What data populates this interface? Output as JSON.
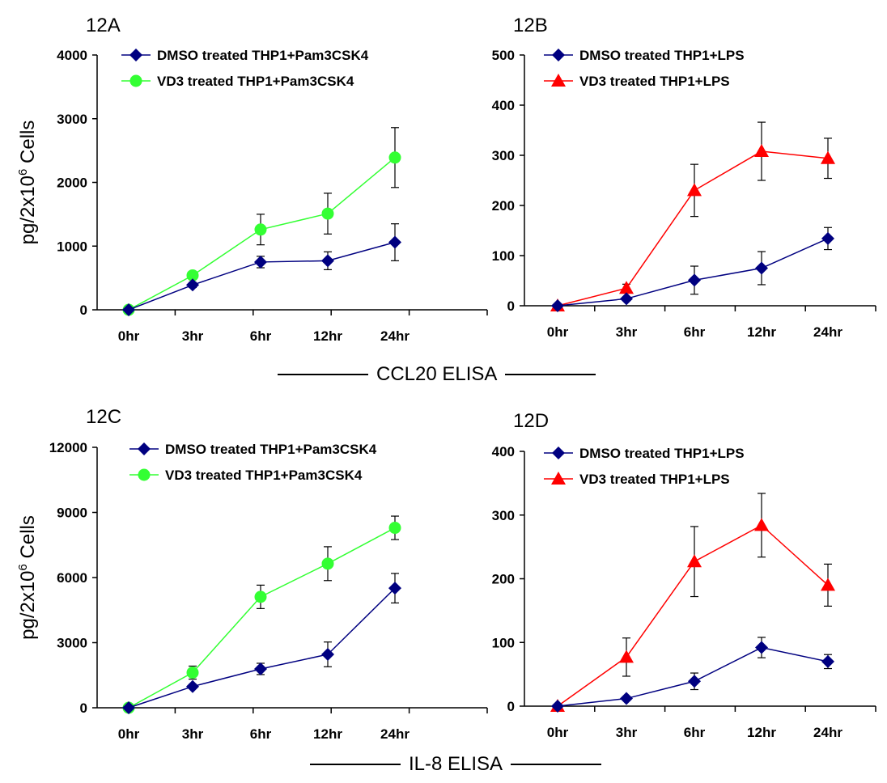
{
  "colors": {
    "dmso": "#000080",
    "vd3_green": "#33ff33",
    "vd3_red": "#ff0000",
    "axis": "#000000"
  },
  "separators": {
    "top": "CCL20 ELISA",
    "bottom": "IL-8 ELISA"
  },
  "chart_data": [
    {
      "type": "line",
      "panel_label": "12A",
      "ylabel": "pg/2x10^6 Cells",
      "categories": [
        "0hr",
        "3hr",
        "6hr",
        "12hr",
        "24hr"
      ],
      "ylim": [
        0,
        4000
      ],
      "yticks": [
        "0",
        "1000",
        "2000",
        "3000",
        "4000"
      ],
      "legend_position": "top-left",
      "series": [
        {
          "name": "DMSO treated THP1+Pam3CSK4",
          "marker": "diamond",
          "color": "#000080",
          "values": [
            0,
            390,
            750,
            770,
            1060
          ],
          "errors": [
            0,
            40,
            90,
            140,
            290
          ]
        },
        {
          "name": "VD3 treated THP1+Pam3CSK4",
          "marker": "circle",
          "color": "#33ff33",
          "values": [
            0,
            540,
            1260,
            1510,
            2390
          ],
          "errors": [
            0,
            50,
            240,
            320,
            470
          ]
        }
      ]
    },
    {
      "type": "line",
      "panel_label": "12B",
      "ylabel": "",
      "categories": [
        "0hr",
        "3hr",
        "6hr",
        "12hr",
        "24hr"
      ],
      "ylim": [
        0,
        500
      ],
      "yticks": [
        "0",
        "100",
        "200",
        "300",
        "400",
        "500"
      ],
      "legend_position": "top-left",
      "series": [
        {
          "name": "DMSO treated THP1+LPS",
          "marker": "diamond",
          "color": "#000080",
          "values": [
            0,
            14,
            51,
            75,
            134
          ],
          "errors": [
            0,
            4,
            28,
            33,
            22
          ]
        },
        {
          "name": "VD3 treated THP1+LPS",
          "marker": "triangle",
          "color": "#ff0000",
          "values": [
            0,
            35,
            230,
            308,
            294
          ],
          "errors": [
            0,
            8,
            52,
            58,
            40
          ]
        }
      ]
    },
    {
      "type": "line",
      "panel_label": "12C",
      "ylabel": "pg/2x10^6 Cells",
      "categories": [
        "0hr",
        "3hr",
        "6hr",
        "12hr",
        "24hr"
      ],
      "ylim": [
        0,
        12000
      ],
      "yticks": [
        "0",
        "3000",
        "6000",
        "9000",
        "12000"
      ],
      "legend_position": "top-left",
      "series": [
        {
          "name": "DMSO treated THP1+Pam3CSK4",
          "marker": "diamond",
          "color": "#000080",
          "values": [
            0,
            980,
            1790,
            2460,
            5510
          ],
          "errors": [
            0,
            100,
            260,
            570,
            680
          ]
        },
        {
          "name": "VD3 treated THP1+Pam3CSK4",
          "marker": "circle",
          "color": "#33ff33",
          "values": [
            0,
            1620,
            5110,
            6640,
            8290
          ],
          "errors": [
            0,
            300,
            540,
            780,
            540
          ]
        }
      ]
    },
    {
      "type": "line",
      "panel_label": "12D",
      "ylabel": "",
      "categories": [
        "0hr",
        "3hr",
        "6hr",
        "12hr",
        "24hr"
      ],
      "ylim": [
        0,
        400
      ],
      "yticks": [
        "0",
        "100",
        "200",
        "300",
        "400"
      ],
      "legend_position": "top-left",
      "series": [
        {
          "name": "DMSO treated THP1+LPS",
          "marker": "diamond",
          "color": "#000080",
          "values": [
            0,
            12,
            39,
            92,
            70
          ],
          "errors": [
            0,
            3,
            13,
            16,
            11
          ]
        },
        {
          "name": "VD3 treated THP1+LPS",
          "marker": "triangle",
          "color": "#ff0000",
          "values": [
            0,
            77,
            227,
            284,
            190
          ],
          "errors": [
            0,
            30,
            55,
            50,
            33
          ]
        }
      ]
    }
  ]
}
